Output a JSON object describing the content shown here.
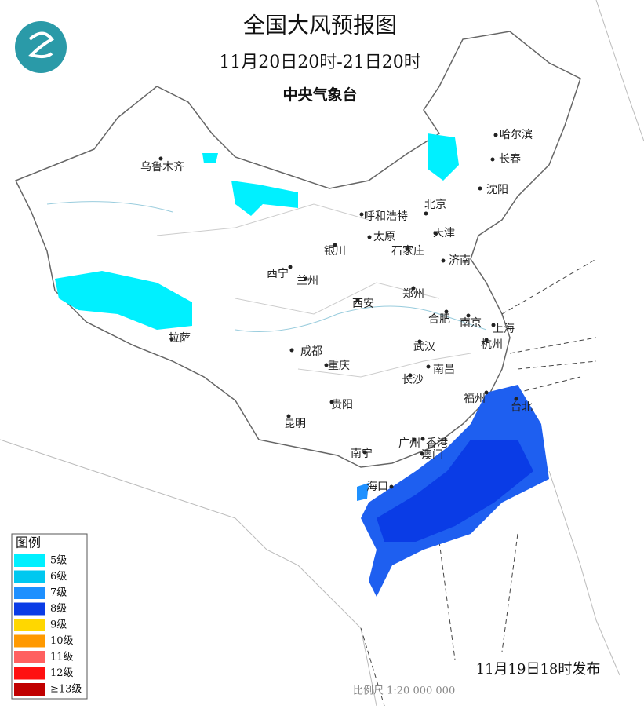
{
  "header": {
    "title": "全国大风预报图",
    "period": "11月20日20时-21日20时",
    "agency": "中央气象台"
  },
  "cities": [
    {
      "name": "乌鲁木齐"
    },
    {
      "name": "哈尔滨"
    },
    {
      "name": "长春"
    },
    {
      "name": "沈阳"
    },
    {
      "name": "北京"
    },
    {
      "name": "呼和浩特"
    },
    {
      "name": "天津"
    },
    {
      "name": "太原"
    },
    {
      "name": "石家庄"
    },
    {
      "name": "银川"
    },
    {
      "name": "济南"
    },
    {
      "name": "西宁"
    },
    {
      "name": "兰州"
    },
    {
      "name": "郑州"
    },
    {
      "name": "西安"
    },
    {
      "name": "合肥"
    },
    {
      "name": "南京"
    },
    {
      "name": "上海"
    },
    {
      "name": "拉萨"
    },
    {
      "name": "成都"
    },
    {
      "name": "武汉"
    },
    {
      "name": "杭州"
    },
    {
      "name": "重庆"
    },
    {
      "name": "南昌"
    },
    {
      "name": "长沙"
    },
    {
      "name": "福州"
    },
    {
      "name": "台北"
    },
    {
      "name": "贵阳"
    },
    {
      "name": "昆明"
    },
    {
      "name": "广州"
    },
    {
      "name": "香港"
    },
    {
      "name": "澳门"
    },
    {
      "name": "南宁"
    },
    {
      "name": "海口"
    }
  ],
  "legend": {
    "title": "图例",
    "items": [
      {
        "label": "5级",
        "color": "#00f0ff"
      },
      {
        "label": "6级",
        "color": "#00c8f0"
      },
      {
        "label": "7级",
        "color": "#1e90ff"
      },
      {
        "label": "8级",
        "color": "#0a3ce6"
      },
      {
        "label": "9级",
        "color": "#ffd700"
      },
      {
        "label": "10级",
        "color": "#ff9900"
      },
      {
        "label": "11级",
        "color": "#ff6060"
      },
      {
        "label": "12级",
        "color": "#ff1010"
      },
      {
        "label": "≥13级",
        "color": "#c00000"
      }
    ]
  },
  "footer": {
    "issued": "11月19日18时发布",
    "scale": "比例尺 1:20 000 000"
  }
}
